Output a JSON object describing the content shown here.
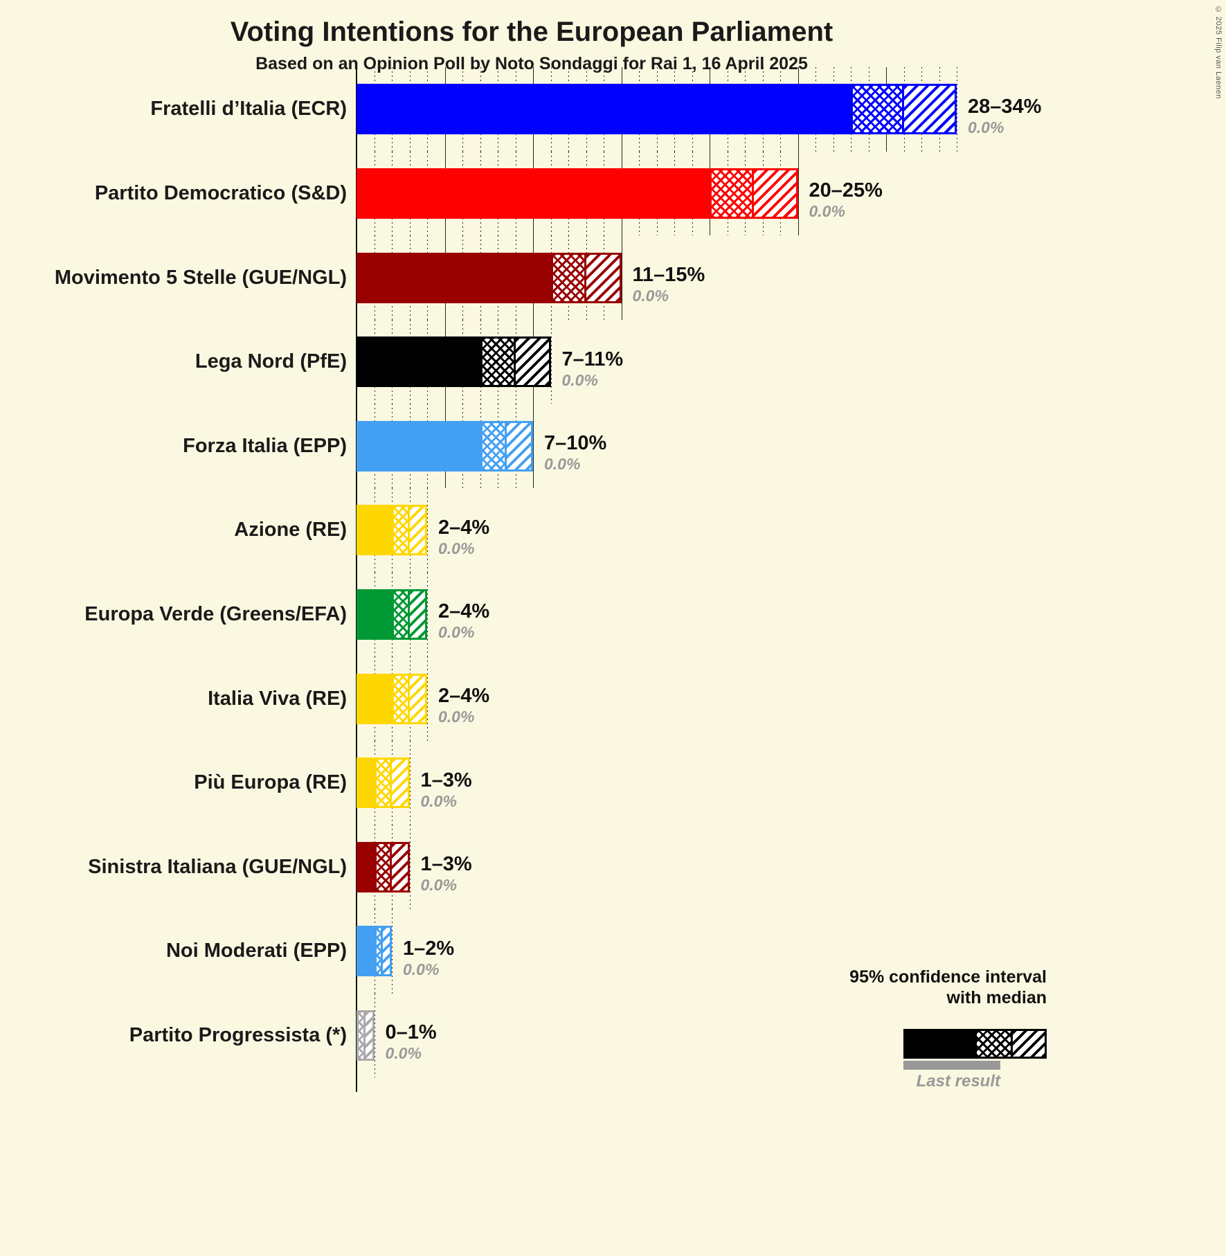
{
  "title": "Voting Intentions for the European Parliament",
  "subtitle": "Based on an Opinion Poll by Noto Sondaggi for Rai 1, 16 April 2025",
  "copyright": "© 2025 Filip van Laenen",
  "colors": {
    "background": "#FBF8E1",
    "text": "#1A1A1A",
    "muted": "#999999"
  },
  "legend": {
    "line1": "95% confidence interval",
    "line2": "with median",
    "last_result_label": "Last result"
  },
  "chart_data": {
    "type": "bar",
    "orientation": "horizontal",
    "unit": "percent",
    "x_axis": {
      "min": 0,
      "max": 34,
      "dotted_gridline_step": 1,
      "solid_gridline_step": 5
    },
    "note": "Each bar is a 95% confidence interval: solid fill to lower bound, crosshatch to median, diagonal hatch to upper bound; gray italic value is the last result (0.0% for all).",
    "parties": [
      {
        "label": "Fratelli d’Italia (ECR)",
        "ci_low": 28,
        "median": 31,
        "ci_high": 34,
        "range_label": "28–34%",
        "last_result": 0.0,
        "last_result_label": "0.0%",
        "color": "#0000FF"
      },
      {
        "label": "Partito Democratico (S&D)",
        "ci_low": 20,
        "median": 22.5,
        "ci_high": 25,
        "range_label": "20–25%",
        "last_result": 0.0,
        "last_result_label": "0.0%",
        "color": "#FF0000"
      },
      {
        "label": "Movimento 5 Stelle (GUE/NGL)",
        "ci_low": 11,
        "median": 13,
        "ci_high": 15,
        "range_label": "11–15%",
        "last_result": 0.0,
        "last_result_label": "0.0%",
        "color": "#990000"
      },
      {
        "label": "Lega Nord (PfE)",
        "ci_low": 7,
        "median": 9,
        "ci_high": 11,
        "range_label": "7–11%",
        "last_result": 0.0,
        "last_result_label": "0.0%",
        "color": "#000000"
      },
      {
        "label": "Forza Italia (EPP)",
        "ci_low": 7,
        "median": 8.5,
        "ci_high": 10,
        "range_label": "7–10%",
        "last_result": 0.0,
        "last_result_label": "0.0%",
        "color": "#44A0F2"
      },
      {
        "label": "Azione (RE)",
        "ci_low": 2,
        "median": 3,
        "ci_high": 4,
        "range_label": "2–4%",
        "last_result": 0.0,
        "last_result_label": "0.0%",
        "color": "#FFD700"
      },
      {
        "label": "Europa Verde (Greens/EFA)",
        "ci_low": 2,
        "median": 3,
        "ci_high": 4,
        "range_label": "2–4%",
        "last_result": 0.0,
        "last_result_label": "0.0%",
        "color": "#009933"
      },
      {
        "label": "Italia Viva (RE)",
        "ci_low": 2,
        "median": 3,
        "ci_high": 4,
        "range_label": "2–4%",
        "last_result": 0.0,
        "last_result_label": "0.0%",
        "color": "#FFD700"
      },
      {
        "label": "Più Europa (RE)",
        "ci_low": 1,
        "median": 2,
        "ci_high": 3,
        "range_label": "1–3%",
        "last_result": 0.0,
        "last_result_label": "0.0%",
        "color": "#FFD700"
      },
      {
        "label": "Sinistra Italiana (GUE/NGL)",
        "ci_low": 1,
        "median": 2,
        "ci_high": 3,
        "range_label": "1–3%",
        "last_result": 0.0,
        "last_result_label": "0.0%",
        "color": "#990000"
      },
      {
        "label": "Noi Moderati (EPP)",
        "ci_low": 1,
        "median": 1.5,
        "ci_high": 2,
        "range_label": "1–2%",
        "last_result": 0.0,
        "last_result_label": "0.0%",
        "color": "#44A0F2"
      },
      {
        "label": "Partito Progressista (*)",
        "ci_low": 0,
        "median": 0.5,
        "ci_high": 1,
        "range_label": "0–1%",
        "last_result": 0.0,
        "last_result_label": "0.0%",
        "color": "#AAAAAA"
      }
    ]
  }
}
